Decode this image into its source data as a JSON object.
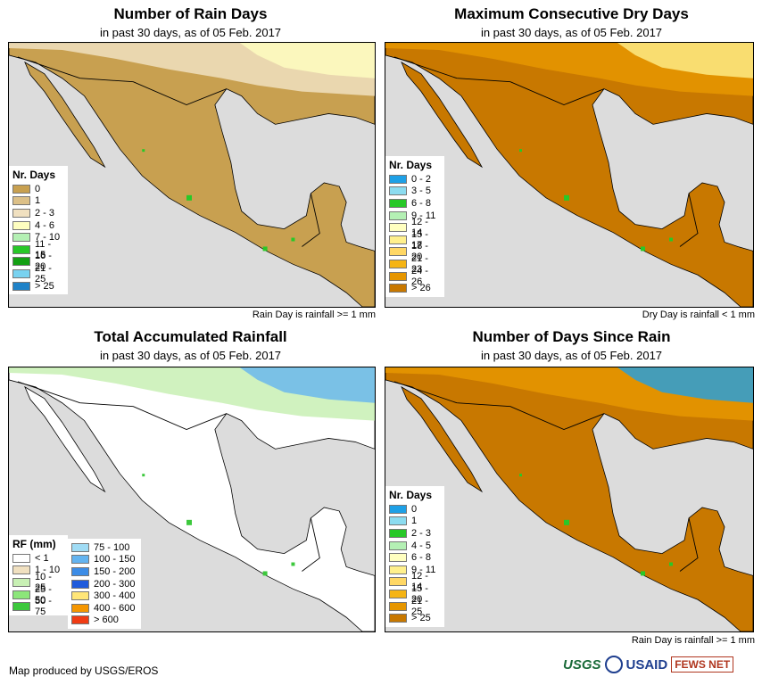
{
  "panels": [
    {
      "title": "Number of Rain Days",
      "subtitle": "in past 30 days, as of 05 Feb. 2017",
      "note": "Rain Day is rainfall >= 1 mm",
      "legend_title": "Nr. Days",
      "legend": [
        {
          "label": "0",
          "color": "#c8a050"
        },
        {
          "label": "1",
          "color": "#dcc088"
        },
        {
          "label": "2 - 3",
          "color": "#f0e0c0"
        },
        {
          "label": "4 - 6",
          "color": "#ffffc0"
        },
        {
          "label": "7 - 10",
          "color": "#b4f0b4"
        },
        {
          "label": "11 - 15",
          "color": "#28c828"
        },
        {
          "label": "16 - 20",
          "color": "#14a014"
        },
        {
          "label": "21 - 25",
          "color": "#78d2f0"
        },
        {
          "label": "> 25",
          "color": "#1e82c8"
        }
      ],
      "fill": {
        "land": "#c8a050",
        "north": "#f0e0c0",
        "north_far": "#ffffc0",
        "accent": "#28c828"
      }
    },
    {
      "title": "Maximum Consecutive Dry Days",
      "subtitle": "in past 30 days, as of 05 Feb. 2017",
      "note": "Dry Day is rainfall < 1 mm",
      "legend_title": "Nr. Days",
      "legend": [
        {
          "label": "0 - 2",
          "color": "#1ea0e6"
        },
        {
          "label": "3 - 5",
          "color": "#8cdcf0"
        },
        {
          "label": "6 - 8",
          "color": "#28c828"
        },
        {
          "label": "9 - 11",
          "color": "#b4f0b4"
        },
        {
          "label": "12 - 14",
          "color": "#ffffc0"
        },
        {
          "label": "15 - 17",
          "color": "#fff08c"
        },
        {
          "label": "18 - 20",
          "color": "#ffd764"
        },
        {
          "label": "21 - 23",
          "color": "#f5b414"
        },
        {
          "label": "24 - 26",
          "color": "#e69600"
        },
        {
          "label": "> 26",
          "color": "#c87800"
        }
      ],
      "fill": {
        "land": "#c87800",
        "north": "#e69600",
        "north_far": "#fff08c",
        "accent": "#28c828"
      }
    },
    {
      "title": "Total Accumulated Rainfall",
      "subtitle": "in past 30 days, as of 05 Feb. 2017",
      "note": "",
      "legend_title": "RF (mm)",
      "legend": [
        {
          "label": "< 1",
          "color": "#ffffff"
        },
        {
          "label": "1 - 10",
          "color": "#f0e0c0"
        },
        {
          "label": "10 - 25",
          "color": "#c8f0b4"
        },
        {
          "label": "25 - 50",
          "color": "#8ce67a"
        },
        {
          "label": "50 - 75",
          "color": "#3cc83c"
        }
      ],
      "legend2": [
        {
          "label": "75 - 100",
          "color": "#a0dcf5"
        },
        {
          "label": "100 - 150",
          "color": "#64b4f0"
        },
        {
          "label": "150 - 200",
          "color": "#3c8ce6"
        },
        {
          "label": "200 - 300",
          "color": "#1e5adc"
        },
        {
          "label": "300 - 400",
          "color": "#ffe678"
        },
        {
          "label": "400 - 600",
          "color": "#f59600"
        },
        {
          "label": "> 600",
          "color": "#f03c14"
        }
      ],
      "fill": {
        "land": "#ffffff",
        "north": "#c8f0b4",
        "north_far": "#64b4f0",
        "accent": "#3cc83c"
      }
    },
    {
      "title": "Number of Days Since Rain",
      "subtitle": "in past 30 days, as of 05 Feb. 2017",
      "note": "Rain Day is rainfall >= 1 mm",
      "legend_title": "Nr. Days",
      "legend": [
        {
          "label": "0",
          "color": "#1ea0e6"
        },
        {
          "label": "1",
          "color": "#8cdcf0"
        },
        {
          "label": "2 - 3",
          "color": "#28c828"
        },
        {
          "label": "4 - 5",
          "color": "#b4f0b4"
        },
        {
          "label": "6 - 8",
          "color": "#ffffc0"
        },
        {
          "label": "9 - 11",
          "color": "#fff08c"
        },
        {
          "label": "12 - 14",
          "color": "#ffd764"
        },
        {
          "label": "15 - 20",
          "color": "#f5b414"
        },
        {
          "label": "21 - 25",
          "color": "#e69600"
        },
        {
          "label": "> 25",
          "color": "#c87800"
        }
      ],
      "fill": {
        "land": "#c87800",
        "north": "#e69600",
        "north_far": "#1ea0e6",
        "accent": "#28c828"
      }
    }
  ],
  "footer": {
    "credit": "Map produced by USGS/EROS"
  },
  "logos": {
    "usgs": "USGS",
    "usaid": "USAID",
    "fews": "FEWS NET"
  }
}
